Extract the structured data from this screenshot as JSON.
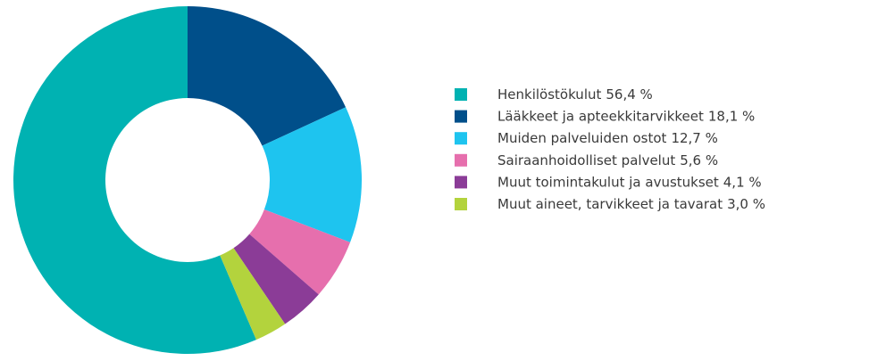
{
  "chart_data": {
    "type": "donut",
    "categories": [
      "Henkilöstökulut",
      "Lääkkeet ja apteekkitarvikkeet",
      "Muiden palveluiden ostot",
      "Sairaanhoidolliset palvelut",
      "Muut toimintakulut ja avustukset",
      "Muut aineet, tarvikkeet ja tavarat"
    ],
    "values": [
      56.4,
      18.1,
      12.7,
      5.6,
      4.1,
      3.0
    ],
    "value_labels": [
      "56,4 %",
      "18,1 %",
      "12,7 %",
      "5,6 %",
      "4,1 %",
      "3,0 %"
    ],
    "colors": [
      "#00b2b2",
      "#004f8a",
      "#1ec4ef",
      "#e66fad",
      "#8b3c97",
      "#b3d33d"
    ],
    "legend": "right"
  }
}
